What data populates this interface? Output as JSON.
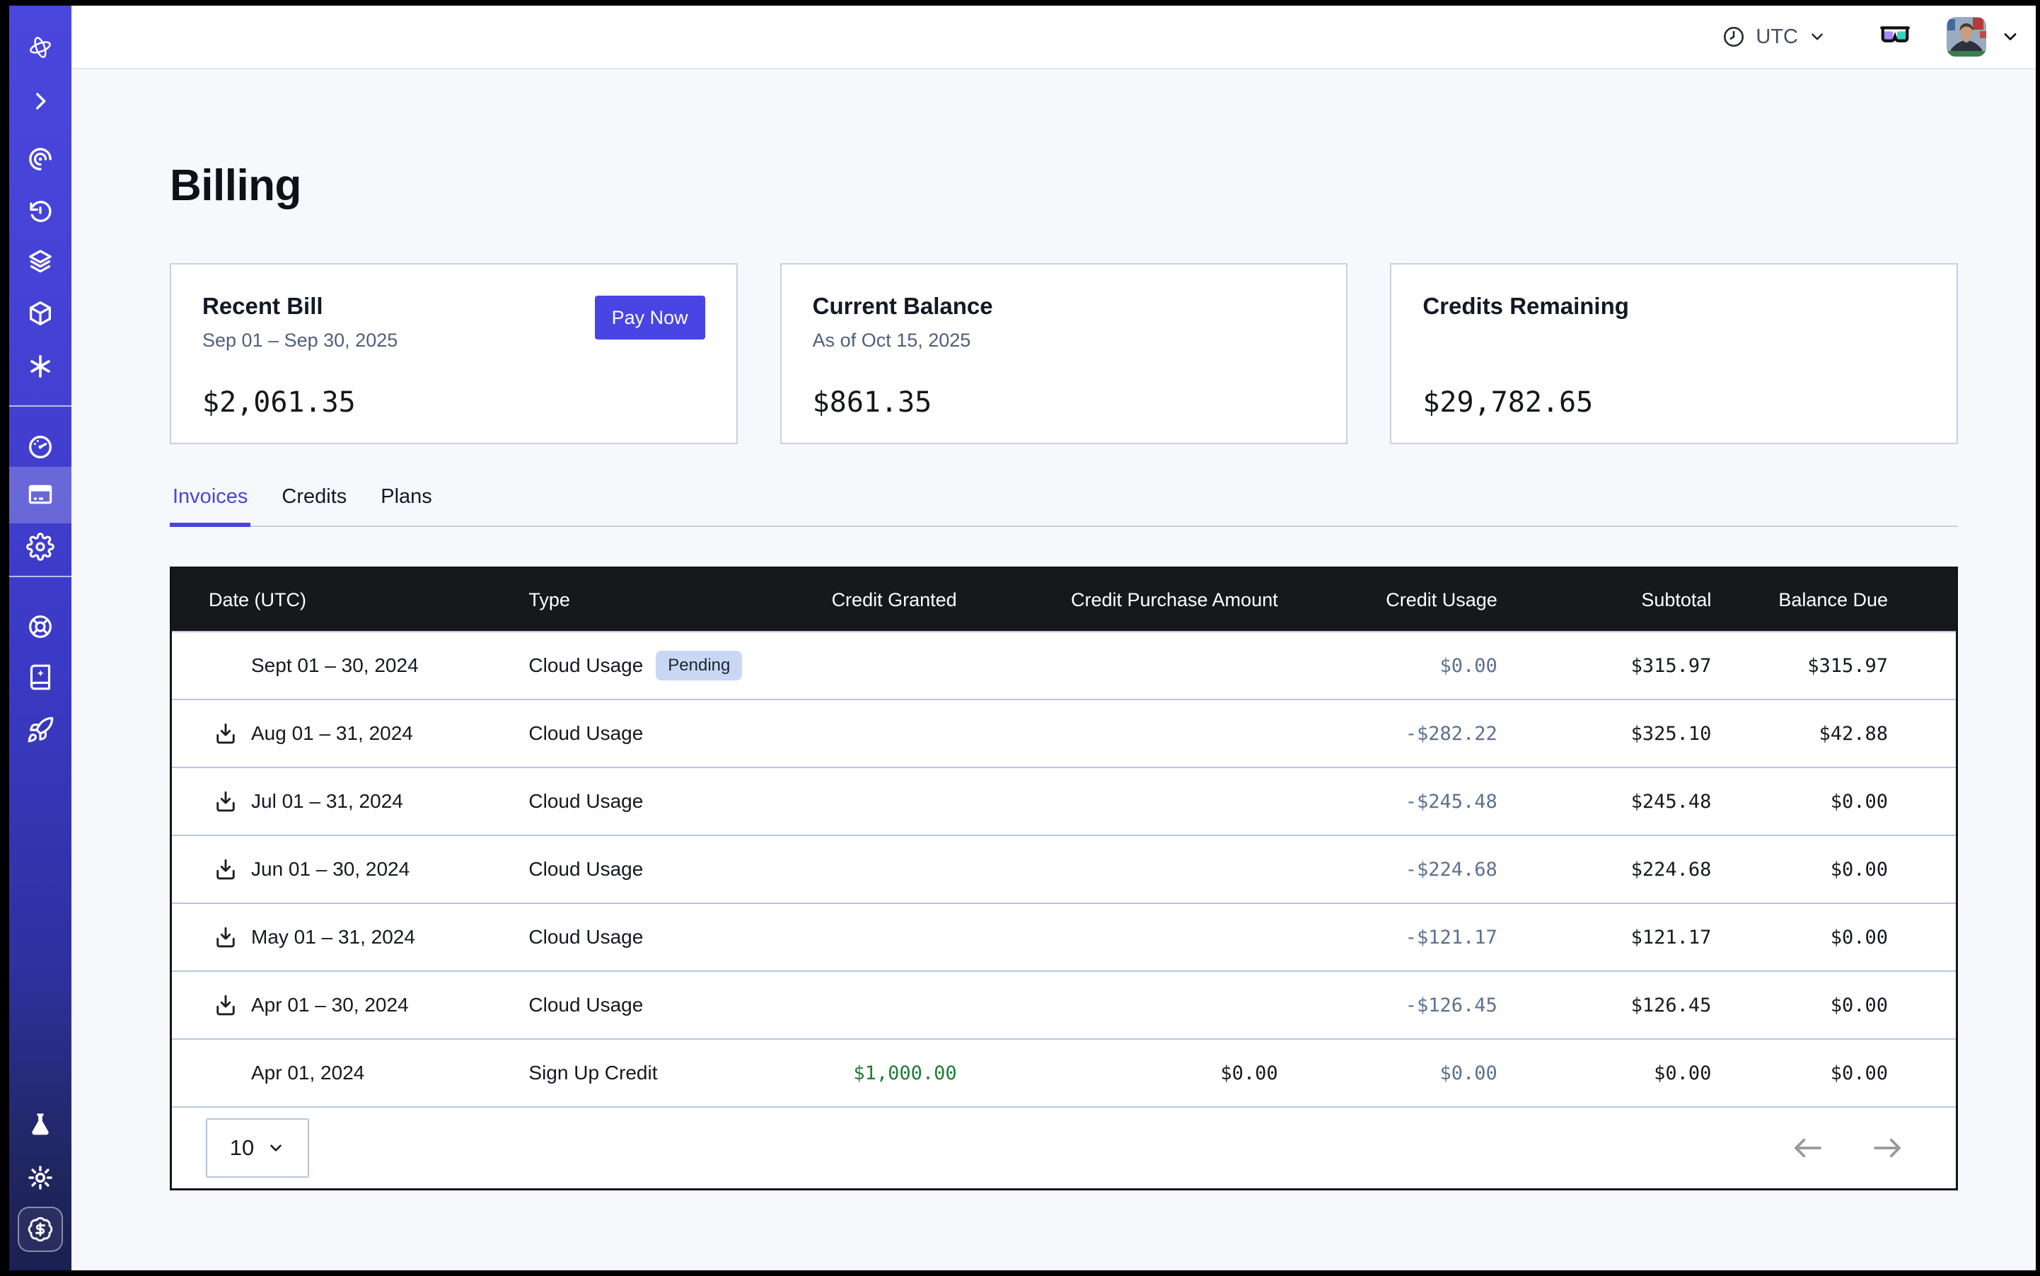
{
  "topbar": {
    "timezone": "UTC"
  },
  "sidebar": {
    "icons": [
      "logo-icon",
      "chevron-right-icon",
      "observe-icon",
      "history-icon",
      "layers-icon",
      "cube-icon",
      "asterisk-icon",
      "gauge-icon",
      "billing-card-icon",
      "settings-gear-icon",
      "support-wheel-icon",
      "docs-book-icon",
      "rocket-icon",
      "flask-icon",
      "brightness-sun-icon",
      "credits-badge-icon"
    ],
    "active_item": "billing-card-icon"
  },
  "page": {
    "title": "Billing"
  },
  "cards": {
    "recent_bill": {
      "title": "Recent Bill",
      "period": "Sep 01 – Sep 30, 2025",
      "amount": "$2,061.35",
      "action": "Pay Now"
    },
    "current_balance": {
      "title": "Current Balance",
      "as_of": "As of Oct 15, 2025",
      "amount": "$861.35"
    },
    "credits_remaining": {
      "title": "Credits Remaining",
      "amount": "$29,782.65"
    }
  },
  "tabs": [
    {
      "label": "Invoices",
      "active": true
    },
    {
      "label": "Credits",
      "active": false
    },
    {
      "label": "Plans",
      "active": false
    }
  ],
  "table": {
    "columns": [
      "Date (UTC)",
      "Type",
      "Credit Granted",
      "Credit Purchase Amount",
      "Credit Usage",
      "Subtotal",
      "Balance Due"
    ],
    "rows": [
      {
        "date": "Sept 01 – 30, 2024",
        "download": false,
        "type": "Cloud Usage",
        "badge": "Pending",
        "credit_granted": "",
        "credit_purchase": "",
        "credit_usage": "$0.00",
        "subtotal": "$315.97",
        "balance_due": "$315.97"
      },
      {
        "date": "Aug 01 – 31, 2024",
        "download": true,
        "type": "Cloud Usage",
        "badge": "",
        "credit_granted": "",
        "credit_purchase": "",
        "credit_usage": "-$282.22",
        "subtotal": "$325.10",
        "balance_due": "$42.88"
      },
      {
        "date": "Jul 01 – 31, 2024",
        "download": true,
        "type": "Cloud Usage",
        "badge": "",
        "credit_granted": "",
        "credit_purchase": "",
        "credit_usage": "-$245.48",
        "subtotal": "$245.48",
        "balance_due": "$0.00"
      },
      {
        "date": "Jun 01 – 30, 2024",
        "download": true,
        "type": "Cloud Usage",
        "badge": "",
        "credit_granted": "",
        "credit_purchase": "",
        "credit_usage": "-$224.68",
        "subtotal": "$224.68",
        "balance_due": "$0.00"
      },
      {
        "date": "May 01 – 31, 2024",
        "download": true,
        "type": "Cloud Usage",
        "badge": "",
        "credit_granted": "",
        "credit_purchase": "",
        "credit_usage": "-$121.17",
        "subtotal": "$121.17",
        "balance_due": "$0.00"
      },
      {
        "date": "Apr 01 – 30, 2024",
        "download": true,
        "type": "Cloud Usage",
        "badge": "",
        "credit_granted": "",
        "credit_purchase": "",
        "credit_usage": "-$126.45",
        "subtotal": "$126.45",
        "balance_due": "$0.00"
      },
      {
        "date": "Apr 01, 2024",
        "download": false,
        "type": "Sign Up Credit",
        "badge": "",
        "credit_granted": "$1,000.00",
        "credit_purchase": "$0.00",
        "credit_usage": "$0.00",
        "subtotal": "$0.00",
        "balance_due": "$0.00"
      }
    ],
    "pagination": {
      "page_size": "10"
    }
  },
  "colors": {
    "accent": "#4845e4",
    "sidebar_top": "#4a47dd",
    "sidebar_bottom": "#1b2052",
    "tab_active": "#4a44dc",
    "table_header_bg": "#17181b",
    "credit_usage_text": "#5b7191",
    "credit_granted_green": "#1d7d35",
    "pending_badge_bg": "#c8d8f4",
    "glasses_left_lens": "#a78bfa",
    "glasses_right_lens": "#35d3c0"
  }
}
